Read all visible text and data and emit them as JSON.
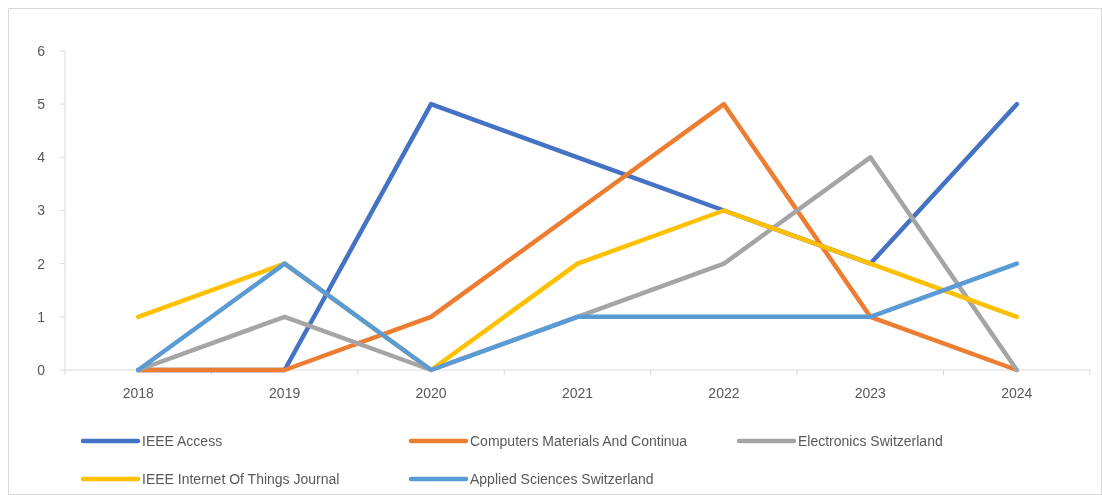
{
  "chart_data": {
    "type": "line",
    "categories": [
      "2018",
      "2019",
      "2020",
      "2021",
      "2022",
      "2023",
      "2024"
    ],
    "ylim": [
      0,
      6
    ],
    "yticks": [
      0,
      1,
      2,
      3,
      4,
      5,
      6
    ],
    "grid": false,
    "legend": "bottom",
    "line_style": "solid",
    "marker": "none",
    "series": [
      {
        "name": "IEEE Access",
        "color": "#4472c4",
        "values": [
          0,
          0,
          5,
          4,
          3,
          2,
          5
        ]
      },
      {
        "name": "Computers Materials And Continua",
        "color": "#ed7d31",
        "values": [
          0,
          0,
          1,
          3,
          5,
          1,
          0
        ]
      },
      {
        "name": "Electronics Switzerland",
        "color": "#a5a5a5",
        "values": [
          0,
          1,
          0,
          1,
          2,
          4,
          0
        ]
      },
      {
        "name": "IEEE Internet Of Things Journal",
        "color": "#ffc000",
        "values": [
          1,
          2,
          0,
          2,
          3,
          2,
          1
        ]
      },
      {
        "name": "Applied Sciences Switzerland",
        "color": "#5b9bd5",
        "values": [
          0,
          2,
          0,
          1,
          1,
          1,
          2
        ]
      }
    ]
  }
}
